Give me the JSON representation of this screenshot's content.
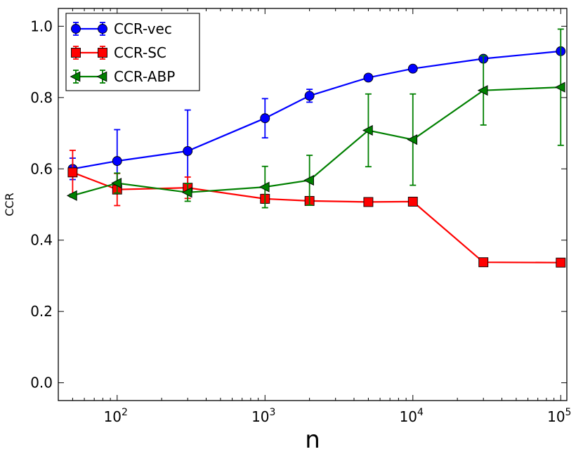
{
  "chart_data": {
    "type": "line",
    "xscale": "log",
    "xlim": [
      40,
      110000
    ],
    "ylim": [
      -0.05,
      1.05
    ],
    "xlabel": "n",
    "ylabel": "CCR",
    "grid": false,
    "legend_position": "top-left",
    "x_ticks": [
      {
        "base": "10",
        "exp": "2",
        "value": 100
      },
      {
        "base": "10",
        "exp": "3",
        "value": 1000
      },
      {
        "base": "10",
        "exp": "4",
        "value": 10000
      },
      {
        "base": "10",
        "exp": "5",
        "value": 100000
      }
    ],
    "y_ticks": [
      {
        "label": "0.0",
        "value": 0.0
      },
      {
        "label": "0.2",
        "value": 0.2
      },
      {
        "label": "0.4",
        "value": 0.4
      },
      {
        "label": "0.6",
        "value": 0.6
      },
      {
        "label": "0.8",
        "value": 0.8
      },
      {
        "label": "1.0",
        "value": 1.0
      }
    ],
    "series": [
      {
        "name": "CCR-vec",
        "color": "#0000ff",
        "marker": "circle",
        "x": [
          50,
          100,
          300,
          1000,
          2000,
          5000,
          10000,
          30000,
          100000
        ],
        "y": [
          0.6,
          0.622,
          0.65,
          0.742,
          0.805,
          0.856,
          0.881,
          0.909,
          0.93
        ],
        "err": [
          0.03,
          0.088,
          0.115,
          0.055,
          0.018,
          0.005,
          0.005,
          0.004,
          0.004
        ]
      },
      {
        "name": "CCR-SC",
        "color": "#ff0000",
        "marker": "square",
        "x": [
          50,
          100,
          300,
          1000,
          2000,
          5000,
          10000,
          30000,
          100000
        ],
        "y": [
          0.59,
          0.542,
          0.547,
          0.516,
          0.51,
          0.507,
          0.508,
          0.338,
          0.337
        ],
        "err": [
          0.062,
          0.045,
          0.03,
          0.012,
          0.008,
          0.004,
          0.004,
          0.004,
          0.004
        ]
      },
      {
        "name": "CCR-ABP",
        "color": "#008000",
        "marker": "triangle-left",
        "x": [
          50,
          100,
          300,
          1000,
          2000,
          5000,
          10000,
          30000,
          100000
        ],
        "y": [
          0.525,
          0.56,
          0.534,
          0.549,
          0.568,
          0.708,
          0.682,
          0.82,
          0.829
        ],
        "err": [
          0.004,
          0.028,
          0.025,
          0.058,
          0.07,
          0.102,
          0.128,
          0.097,
          0.163
        ]
      }
    ]
  }
}
